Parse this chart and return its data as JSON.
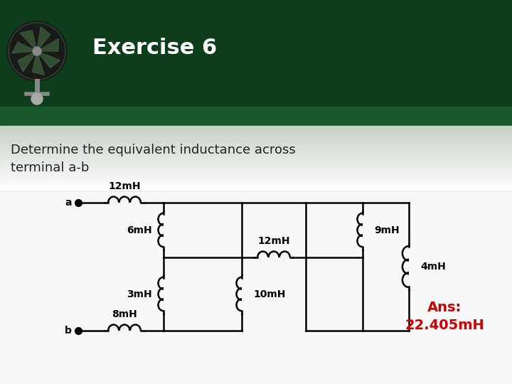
{
  "title": "Exercise 6",
  "subtitle": "Determine the equivalent inductance across\nterminal a-b",
  "ans_text": "Ans:\n22.405mH",
  "ans_color": "#cc0000",
  "title_color": "#ffffff",
  "circuit_color": "#000000",
  "label_12mH_top": "12mH",
  "label_6mH": "6mH",
  "label_9mH": "9mH",
  "label_12mH_mid": "12mH",
  "label_4mH": "4mH",
  "label_3mH": "3mH",
  "label_10mH": "10mH",
  "label_8mH": "8mH"
}
